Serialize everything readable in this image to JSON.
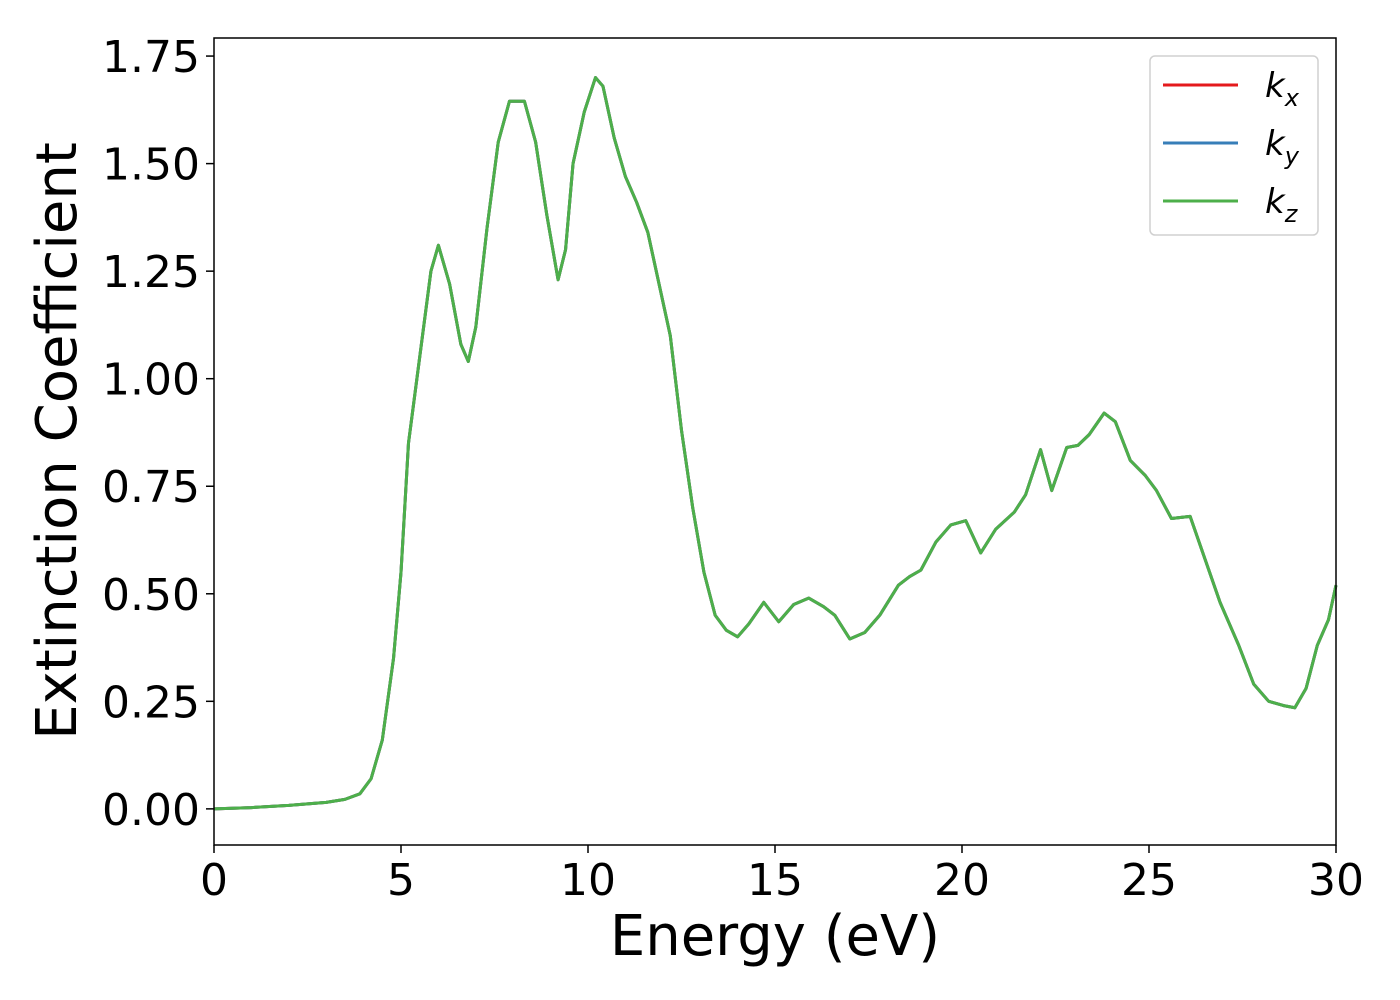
{
  "chart_data": {
    "type": "line",
    "xlabel": "Energy (eV)",
    "ylabel": "Extinction Coefficient",
    "xlim": [
      0,
      30
    ],
    "ylim": [
      -0.084,
      1.792
    ],
    "xticks": [
      0,
      5,
      10,
      15,
      20,
      25,
      30
    ],
    "yticks": [
      {
        "value": 0,
        "label": "0.00"
      },
      {
        "value": 0.25,
        "label": "0.25"
      },
      {
        "value": 0.5,
        "label": "0.50"
      },
      {
        "value": 0.75,
        "label": "0.75"
      },
      {
        "value": 1,
        "label": "1.00"
      },
      {
        "value": 1.25,
        "label": "1.25"
      },
      {
        "value": 1.5,
        "label": "1.50"
      },
      {
        "value": 1.75,
        "label": "1.75"
      }
    ],
    "grid": false,
    "legend": "upper right",
    "x": [
      0,
      1,
      2,
      3,
      3.5,
      3.9,
      4.2,
      4.5,
      4.8,
      5.0,
      5.2,
      5.5,
      5.8,
      6.0,
      6.3,
      6.6,
      6.8,
      7.0,
      7.3,
      7.6,
      7.9,
      8.3,
      8.6,
      8.9,
      9.2,
      9.4,
      9.6,
      9.9,
      10.2,
      10.4,
      10.7,
      11.0,
      11.3,
      11.6,
      11.9,
      12.2,
      12.5,
      12.8,
      13.1,
      13.4,
      13.7,
      14.0,
      14.3,
      14.7,
      15.1,
      15.5,
      15.9,
      16.3,
      16.6,
      17.0,
      17.4,
      17.8,
      18.3,
      18.6,
      18.9,
      19.3,
      19.7,
      20.1,
      20.5,
      20.9,
      21.4,
      21.7,
      22.1,
      22.4,
      22.8,
      23.1,
      23.4,
      23.8,
      24.1,
      24.5,
      24.9,
      25.2,
      25.6,
      26.1,
      26.5,
      26.9,
      27.4,
      27.8,
      28.2,
      28.6,
      28.9,
      29.2,
      29.5,
      29.8,
      30
    ],
    "series": [
      {
        "name": "kx",
        "color": "#e41a1c",
        "values": [
          0,
          0.003,
          0.008,
          0.015,
          0.022,
          0.035,
          0.07,
          0.16,
          0.35,
          0.55,
          0.85,
          1.05,
          1.25,
          1.31,
          1.22,
          1.08,
          1.04,
          1.12,
          1.35,
          1.55,
          1.645,
          1.645,
          1.55,
          1.38,
          1.23,
          1.3,
          1.5,
          1.62,
          1.7,
          1.68,
          1.56,
          1.47,
          1.41,
          1.34,
          1.22,
          1.1,
          0.88,
          0.7,
          0.55,
          0.45,
          0.415,
          0.4,
          0.43,
          0.48,
          0.435,
          0.475,
          0.49,
          0.47,
          0.45,
          0.395,
          0.41,
          0.45,
          0.52,
          0.54,
          0.555,
          0.62,
          0.66,
          0.67,
          0.595,
          0.65,
          0.69,
          0.73,
          0.835,
          0.74,
          0.84,
          0.845,
          0.87,
          0.92,
          0.9,
          0.81,
          0.775,
          0.74,
          0.675,
          0.68,
          0.58,
          0.48,
          0.38,
          0.29,
          0.25,
          0.24,
          0.235,
          0.28,
          0.38,
          0.44,
          0.52
        ]
      },
      {
        "name": "ky",
        "color": "#377eb8",
        "values": [
          0,
          0.003,
          0.008,
          0.015,
          0.022,
          0.035,
          0.07,
          0.16,
          0.35,
          0.55,
          0.85,
          1.05,
          1.25,
          1.31,
          1.22,
          1.08,
          1.04,
          1.12,
          1.35,
          1.55,
          1.645,
          1.645,
          1.55,
          1.38,
          1.23,
          1.3,
          1.5,
          1.62,
          1.7,
          1.68,
          1.56,
          1.47,
          1.41,
          1.34,
          1.22,
          1.1,
          0.88,
          0.7,
          0.55,
          0.45,
          0.415,
          0.4,
          0.43,
          0.48,
          0.435,
          0.475,
          0.49,
          0.47,
          0.45,
          0.395,
          0.41,
          0.45,
          0.52,
          0.54,
          0.555,
          0.62,
          0.66,
          0.67,
          0.595,
          0.65,
          0.69,
          0.73,
          0.835,
          0.74,
          0.84,
          0.845,
          0.87,
          0.92,
          0.9,
          0.81,
          0.775,
          0.74,
          0.675,
          0.68,
          0.58,
          0.48,
          0.38,
          0.29,
          0.25,
          0.24,
          0.235,
          0.28,
          0.38,
          0.44,
          0.52
        ]
      },
      {
        "name": "kz",
        "color": "#4daf4a",
        "values": [
          0,
          0.003,
          0.008,
          0.015,
          0.022,
          0.035,
          0.07,
          0.16,
          0.35,
          0.55,
          0.85,
          1.05,
          1.25,
          1.31,
          1.22,
          1.08,
          1.04,
          1.12,
          1.35,
          1.55,
          1.645,
          1.645,
          1.55,
          1.38,
          1.23,
          1.3,
          1.5,
          1.62,
          1.7,
          1.68,
          1.56,
          1.47,
          1.41,
          1.34,
          1.22,
          1.1,
          0.88,
          0.7,
          0.55,
          0.45,
          0.415,
          0.4,
          0.43,
          0.48,
          0.435,
          0.475,
          0.49,
          0.47,
          0.45,
          0.395,
          0.41,
          0.45,
          0.52,
          0.54,
          0.555,
          0.62,
          0.66,
          0.67,
          0.595,
          0.65,
          0.69,
          0.73,
          0.835,
          0.74,
          0.84,
          0.845,
          0.87,
          0.92,
          0.9,
          0.81,
          0.775,
          0.74,
          0.675,
          0.68,
          0.58,
          0.48,
          0.38,
          0.29,
          0.25,
          0.24,
          0.235,
          0.28,
          0.38,
          0.44,
          0.52
        ]
      }
    ]
  }
}
